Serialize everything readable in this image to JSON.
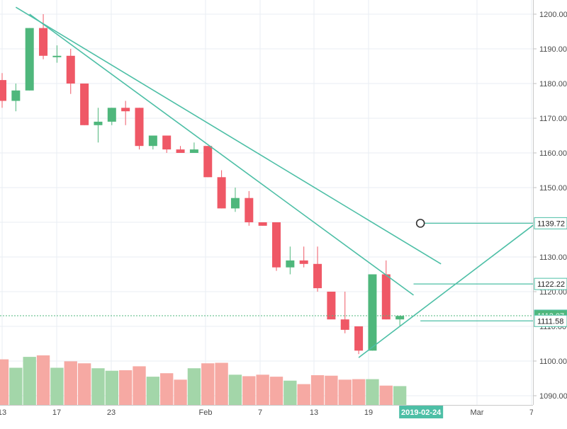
{
  "chart_data": {
    "type": "candlestick",
    "grid": true,
    "colors": {
      "up": "#4fb77c",
      "down": "#ef5866",
      "up_volume": "#a3d6a9",
      "down_volume": "#f6a9a3",
      "trendline": "#4dbfa6",
      "grid": "#e9edf3",
      "last_price_line": "#4fb77c"
    },
    "y_axis": {
      "range": [
        1088,
        1203
      ],
      "ticks": [
        "1090.00",
        "1100.00",
        "1110.00",
        "1120.00",
        "1130.00",
        "1140.00",
        "1150.00",
        "1160.00",
        "1170.00",
        "1180.00",
        "1190.00",
        "1200.00"
      ]
    },
    "x_axis": {
      "ticks": [
        "13",
        "17",
        "23",
        "Feb",
        "7",
        "13",
        "19",
        "Mar",
        "7"
      ],
      "highlight": "2019-02-24"
    },
    "candles": [
      {
        "open": 1181,
        "high": 1183,
        "low": 1173,
        "close": 1175
      },
      {
        "open": 1175,
        "high": 1180,
        "low": 1172,
        "close": 1178
      },
      {
        "open": 1178,
        "high": 1196,
        "low": 1178,
        "close": 1196
      },
      {
        "open": 1196,
        "high": 1200,
        "low": 1187,
        "close": 1188
      },
      {
        "open": 1188,
        "high": 1191,
        "low": 1186,
        "close": 1188
      },
      {
        "open": 1188,
        "high": 1190,
        "low": 1177,
        "close": 1180
      },
      {
        "open": 1180,
        "high": 1180,
        "low": 1168,
        "close": 1168
      },
      {
        "open": 1168,
        "high": 1173,
        "low": 1163,
        "close": 1169
      },
      {
        "open": 1169,
        "high": 1173,
        "low": 1168,
        "close": 1173
      },
      {
        "open": 1173,
        "high": 1175,
        "low": 1168,
        "close": 1172
      },
      {
        "open": 1173,
        "high": 1173,
        "low": 1161,
        "close": 1162
      },
      {
        "open": 1162,
        "high": 1165,
        "low": 1161,
        "close": 1165
      },
      {
        "open": 1165,
        "high": 1165,
        "low": 1160,
        "close": 1161
      },
      {
        "open": 1161,
        "high": 1162,
        "low": 1160,
        "close": 1160
      },
      {
        "open": 1160,
        "high": 1163,
        "low": 1160,
        "close": 1161
      },
      {
        "open": 1162,
        "high": 1162,
        "low": 1153,
        "close": 1153
      },
      {
        "open": 1153,
        "high": 1155,
        "low": 1144,
        "close": 1144
      },
      {
        "open": 1144,
        "high": 1150,
        "low": 1143,
        "close": 1147
      },
      {
        "open": 1147,
        "high": 1149,
        "low": 1139,
        "close": 1140
      },
      {
        "open": 1140,
        "high": 1140,
        "low": 1139,
        "close": 1139
      },
      {
        "open": 1140,
        "high": 1140,
        "low": 1126,
        "close": 1127
      },
      {
        "open": 1127,
        "high": 1133,
        "low": 1125,
        "close": 1129
      },
      {
        "open": 1129,
        "high": 1133,
        "low": 1127,
        "close": 1128
      },
      {
        "open": 1128,
        "high": 1133,
        "low": 1120,
        "close": 1121
      },
      {
        "open": 1120,
        "high": 1120,
        "low": 1113,
        "close": 1112
      },
      {
        "open": 1112,
        "high": 1120,
        "low": 1108,
        "close": 1109
      },
      {
        "open": 1110,
        "high": 1110,
        "low": 1102,
        "close": 1103
      },
      {
        "open": 1103,
        "high": 1125,
        "low": 1103,
        "close": 1125
      },
      {
        "open": 1125,
        "high": 1129,
        "low": 1112,
        "close": 1112
      },
      {
        "open": 1112,
        "high": 1113,
        "low": 1110,
        "close": 1113
      }
    ],
    "volume_relative": [
      0.92,
      0.75,
      0.97,
      1.0,
      0.75,
      0.88,
      0.84,
      0.74,
      0.69,
      0.7,
      0.78,
      0.57,
      0.64,
      0.51,
      0.74,
      0.84,
      0.85,
      0.61,
      0.58,
      0.61,
      0.57,
      0.49,
      0.42,
      0.6,
      0.59,
      0.51,
      0.52,
      0.52,
      0.39,
      0.38
    ],
    "trendlines": [
      {
        "from": [
          "2019-01-15",
          1202
        ],
        "to": [
          "2019-02-27",
          1128
        ]
      },
      {
        "from": [
          "2019-01-16",
          1200
        ],
        "to": [
          "2019-02-23",
          1119
        ]
      },
      {
        "from": [
          "2019-02-19",
          1101
        ],
        "to": [
          "2019-03-09",
          1143
        ]
      }
    ],
    "horizontal_levels": [
      1139.72,
      1122.22,
      1111.58
    ],
    "price_labels": [
      {
        "value": 1139.72,
        "text": "1139.72",
        "style": "outline"
      },
      {
        "value": 1122.22,
        "text": "1122.22",
        "style": "outline"
      },
      {
        "value": 1113.07,
        "text": "1113.07",
        "style": "filled"
      },
      {
        "value": 1111.58,
        "text": "1111.58",
        "style": "outline"
      }
    ],
    "last_price": 1113.07
  }
}
